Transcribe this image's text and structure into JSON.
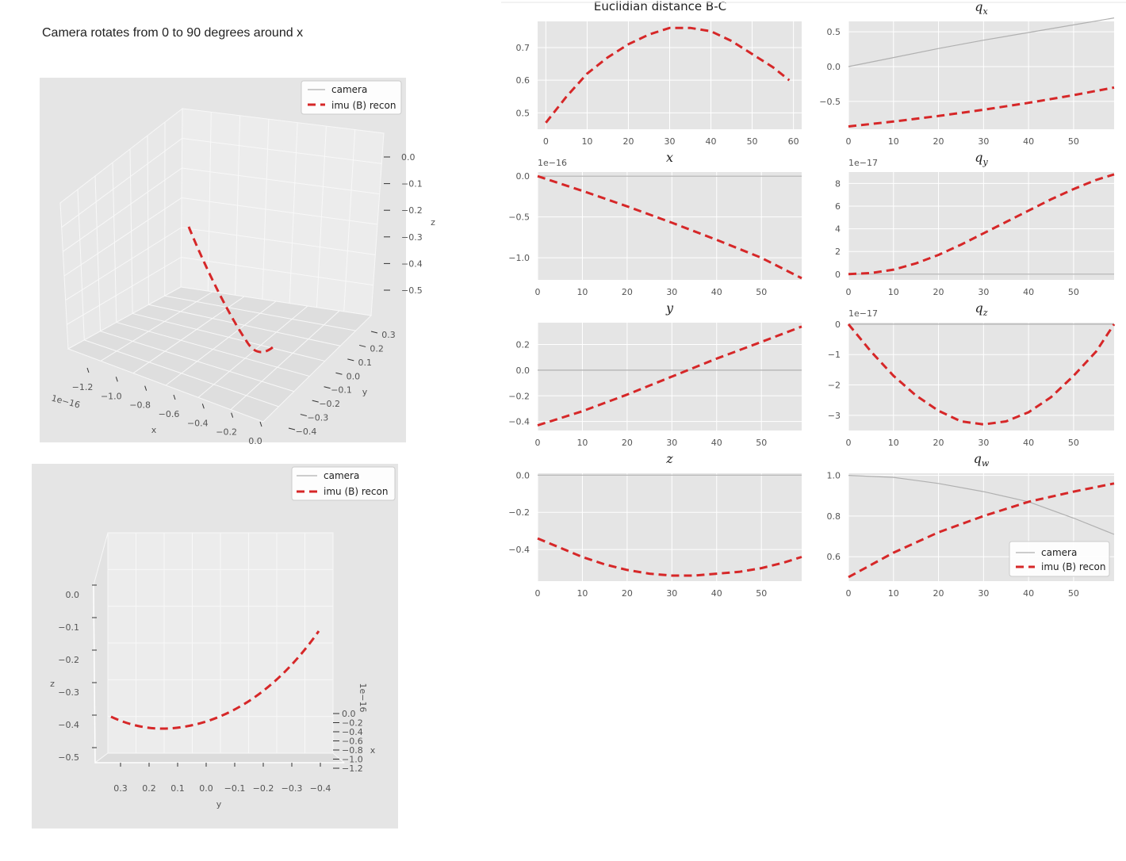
{
  "caption": "Camera rotates from 0 to 90 degrees around x",
  "colors": {
    "camera": "#b0b0b0",
    "imu": "#d62728",
    "panel": "#e5e5e5",
    "grid": "#ffffff"
  },
  "legend": {
    "camera": "camera",
    "imu": "imu (B) recon"
  },
  "chart_data": [
    {
      "type": "line",
      "id": "dist",
      "title": "Euclidian distance B-C",
      "sci": "",
      "xlim": [
        -2,
        62
      ],
      "ylim": [
        0.45,
        0.78
      ],
      "xticks": [
        0,
        10,
        20,
        30,
        40,
        50,
        60
      ],
      "yticks": [
        0.5,
        0.6,
        0.7
      ],
      "yticklabels": [
        "0.5",
        "0.6",
        "0.7"
      ],
      "series": [
        {
          "key": "imu",
          "x": [
            0,
            5,
            10,
            15,
            20,
            25,
            30,
            35,
            40,
            45,
            50,
            55,
            59
          ],
          "y": [
            0.47,
            0.55,
            0.62,
            0.67,
            0.71,
            0.74,
            0.76,
            0.76,
            0.75,
            0.72,
            0.68,
            0.64,
            0.6
          ]
        }
      ]
    },
    {
      "type": "line",
      "id": "qx",
      "title": "qx",
      "sci": "",
      "xlim": [
        0,
        59
      ],
      "ylim": [
        -0.9,
        0.65
      ],
      "xticks": [
        0,
        10,
        20,
        30,
        40,
        50
      ],
      "yticks": [
        -0.5,
        0.0,
        0.5
      ],
      "yticklabels": [
        "−0.5",
        "0.0",
        "0.5"
      ],
      "series": [
        {
          "key": "camera",
          "x": [
            0,
            10,
            20,
            30,
            40,
            50,
            59
          ],
          "y": [
            0,
            0.13,
            0.26,
            0.38,
            0.49,
            0.6,
            0.7
          ]
        },
        {
          "key": "imu",
          "x": [
            0,
            10,
            20,
            30,
            40,
            50,
            59
          ],
          "y": [
            -0.86,
            -0.79,
            -0.71,
            -0.62,
            -0.52,
            -0.41,
            -0.3
          ]
        }
      ]
    },
    {
      "type": "line",
      "id": "x",
      "title": "x",
      "sci": "1e−16",
      "xlim": [
        0,
        59
      ],
      "ylim": [
        -1.27,
        0.05
      ],
      "xticks": [
        0,
        10,
        20,
        30,
        40,
        50
      ],
      "yticks": [
        -1.0,
        -0.5,
        0.0
      ],
      "yticklabels": [
        "−1.0",
        "−0.5",
        "0.0"
      ],
      "series": [
        {
          "key": "camera",
          "x": [
            0,
            59
          ],
          "y": [
            0,
            0
          ]
        },
        {
          "key": "imu",
          "x": [
            0,
            10,
            20,
            30,
            40,
            50,
            59
          ],
          "y": [
            0,
            -0.18,
            -0.37,
            -0.57,
            -0.78,
            -1.0,
            -1.25
          ]
        }
      ]
    },
    {
      "type": "line",
      "id": "qy",
      "title": "qy",
      "sci": "1e−17",
      "xlim": [
        0,
        59
      ],
      "ylim": [
        -0.5,
        9.0
      ],
      "xticks": [
        0,
        10,
        20,
        30,
        40,
        50
      ],
      "yticks": [
        0,
        2,
        4,
        6,
        8
      ],
      "yticklabels": [
        "0",
        "2",
        "4",
        "6",
        "8"
      ],
      "series": [
        {
          "key": "camera",
          "x": [
            0,
            59
          ],
          "y": [
            0,
            0
          ]
        },
        {
          "key": "imu",
          "x": [
            0,
            5,
            10,
            15,
            20,
            25,
            30,
            35,
            40,
            45,
            50,
            55,
            59
          ],
          "y": [
            0,
            0.1,
            0.4,
            0.95,
            1.7,
            2.6,
            3.6,
            4.6,
            5.6,
            6.6,
            7.5,
            8.3,
            8.8
          ]
        }
      ]
    },
    {
      "type": "line",
      "id": "y",
      "title": "y",
      "sci": "",
      "xlim": [
        0,
        59
      ],
      "ylim": [
        -0.47,
        0.37
      ],
      "xticks": [
        0,
        10,
        20,
        30,
        40,
        50
      ],
      "yticks": [
        -0.4,
        -0.2,
        0.0,
        0.2
      ],
      "yticklabels": [
        "−0.4",
        "−0.2",
        "0.0",
        "0.2"
      ],
      "series": [
        {
          "key": "camera",
          "x": [
            0,
            59
          ],
          "y": [
            0,
            0
          ]
        },
        {
          "key": "imu",
          "x": [
            0,
            10,
            20,
            30,
            40,
            50,
            59
          ],
          "y": [
            -0.43,
            -0.32,
            -0.19,
            -0.05,
            0.09,
            0.22,
            0.34
          ]
        }
      ]
    },
    {
      "type": "line",
      "id": "qz",
      "title": "qz",
      "sci": "1e−17",
      "xlim": [
        0,
        59
      ],
      "ylim": [
        -3.5,
        0.05
      ],
      "xticks": [
        0,
        10,
        20,
        30,
        40,
        50
      ],
      "yticks": [
        -3,
        -2,
        -1,
        0
      ],
      "yticklabels": [
        "−3",
        "−2",
        "−1",
        "0"
      ],
      "series": [
        {
          "key": "camera",
          "x": [
            0,
            59
          ],
          "y": [
            0,
            0
          ]
        },
        {
          "key": "imu",
          "x": [
            0,
            5,
            10,
            15,
            20,
            25,
            30,
            35,
            40,
            45,
            50,
            55,
            59
          ],
          "y": [
            0,
            -0.9,
            -1.7,
            -2.35,
            -2.85,
            -3.2,
            -3.3,
            -3.2,
            -2.9,
            -2.4,
            -1.7,
            -0.9,
            0
          ]
        }
      ]
    },
    {
      "type": "line",
      "id": "z",
      "title": "z",
      "sci": "",
      "xlim": [
        0,
        59
      ],
      "ylim": [
        -0.57,
        0.01
      ],
      "xticks": [
        0,
        10,
        20,
        30,
        40,
        50
      ],
      "yticks": [
        -0.4,
        -0.2,
        0.0
      ],
      "yticklabels": [
        "−0.4",
        "−0.2",
        "0.0"
      ],
      "series": [
        {
          "key": "camera",
          "x": [
            0,
            59
          ],
          "y": [
            0,
            0
          ]
        },
        {
          "key": "imu",
          "x": [
            0,
            5,
            10,
            15,
            20,
            25,
            30,
            35,
            40,
            45,
            50,
            55,
            59
          ],
          "y": [
            -0.34,
            -0.39,
            -0.44,
            -0.48,
            -0.51,
            -0.53,
            -0.54,
            -0.54,
            -0.53,
            -0.52,
            -0.5,
            -0.47,
            -0.44
          ]
        }
      ]
    },
    {
      "type": "line",
      "id": "qw",
      "title": "qw",
      "sci": "",
      "xlim": [
        0,
        59
      ],
      "ylim": [
        0.48,
        1.01
      ],
      "xticks": [
        0,
        10,
        20,
        30,
        40,
        50
      ],
      "yticks": [
        0.6,
        0.8,
        1.0
      ],
      "yticklabels": [
        "0.6",
        "0.8",
        "1.0"
      ],
      "legend": "lower right",
      "series": [
        {
          "key": "camera",
          "x": [
            0,
            10,
            20,
            30,
            40,
            50,
            59
          ],
          "y": [
            1.0,
            0.99,
            0.96,
            0.92,
            0.87,
            0.79,
            0.71
          ]
        },
        {
          "key": "imu",
          "x": [
            0,
            10,
            20,
            30,
            40,
            50,
            59
          ],
          "y": [
            0.5,
            0.62,
            0.72,
            0.8,
            0.87,
            0.92,
            0.96
          ]
        }
      ]
    },
    {
      "type": "line3d",
      "id": "view1",
      "xlabel": "x",
      "ylabel": "y",
      "zlabel": "z",
      "legend": "upper right",
      "xsci": "1e−16",
      "zticklabels": [
        "0.0",
        "−0.1",
        "−0.2",
        "−0.3",
        "−0.4",
        "−0.5"
      ],
      "yticklabels": [
        "0.3",
        "0.2",
        "0.1",
        "0.0",
        "−0.1",
        "−0.2",
        "−0.3",
        "−0.4"
      ],
      "xticklabels": [
        "−1.2",
        "−1.0",
        "−0.8",
        "−0.6",
        "−0.4",
        "−0.2",
        "0.0"
      ]
    },
    {
      "type": "line3d",
      "id": "view2",
      "xlabel": "x",
      "ylabel": "y",
      "zlabel": "z",
      "legend": "upper right",
      "xsci": "1e−16",
      "zticklabels": [
        "0.0",
        "−0.1",
        "−0.2",
        "−0.3",
        "−0.4",
        "−0.5"
      ],
      "yticklabels": [
        "0.3",
        "0.2",
        "0.1",
        "0.0",
        "−0.1",
        "−0.2",
        "−0.3",
        "−0.4"
      ],
      "xticklabels": [
        "0.0",
        "−0.2",
        "−0.4",
        "−0.6",
        "−0.8",
        "−1.0",
        "−1.2"
      ]
    }
  ]
}
